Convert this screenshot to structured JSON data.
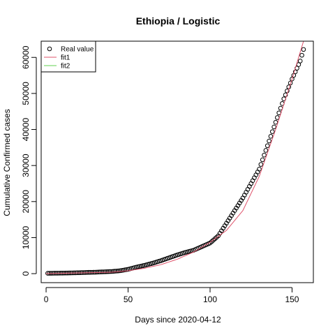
{
  "chart_data": {
    "type": "scatter",
    "title": "Ethiopia / Logistic",
    "xlabel": "Days since 2020-04-12",
    "ylabel": "Cumulative Confirmed cases",
    "xlim": [
      -3,
      163
    ],
    "ylim": [
      -2500,
      64500
    ],
    "x_ticks": [
      {
        "value": 0,
        "label": "0"
      },
      {
        "value": 50,
        "label": "50"
      },
      {
        "value": 100,
        "label": "100"
      },
      {
        "value": 150,
        "label": "150"
      }
    ],
    "y_ticks": [
      {
        "value": 0,
        "label": "0"
      },
      {
        "value": 10000,
        "label": "10000"
      },
      {
        "value": 20000,
        "label": "20000"
      },
      {
        "value": 30000,
        "label": "30000"
      },
      {
        "value": 40000,
        "label": "40000"
      },
      {
        "value": 50000,
        "label": "50000"
      },
      {
        "value": 60000,
        "label": "60000"
      }
    ],
    "legend": {
      "position": "top-left",
      "entries": [
        {
          "label": "Real value",
          "kind": "point",
          "color": "#000000"
        },
        {
          "label": "fit1",
          "kind": "line",
          "color": "#DF536B"
        },
        {
          "label": "fit2",
          "kind": "line",
          "color": "#61D04F"
        }
      ]
    },
    "real_value": {
      "x": [
        1,
        5,
        10,
        15,
        20,
        25,
        30,
        35,
        40,
        45,
        50,
        55,
        60,
        65,
        70,
        75,
        80,
        85,
        90,
        95,
        100,
        105,
        110,
        115,
        120,
        125,
        130,
        135,
        140,
        145,
        150,
        155,
        157
      ],
      "y": [
        100,
        120,
        150,
        200,
        250,
        350,
        400,
        500,
        600,
        800,
        1200,
        1800,
        2300,
        2900,
        3600,
        4400,
        5200,
        5900,
        6500,
        7500,
        8500,
        10500,
        14000,
        17500,
        21000,
        25000,
        29000,
        35500,
        42000,
        48500,
        54000,
        59000,
        62200
      ]
    },
    "fit1": {
      "color": "#DF536B",
      "x": [
        0,
        10,
        20,
        30,
        40,
        50,
        60,
        70,
        80,
        90,
        100,
        110,
        120,
        130,
        140,
        150,
        157
      ],
      "y": [
        0,
        100,
        200,
        300,
        400,
        800,
        1500,
        2500,
        4000,
        6000,
        8700,
        12000,
        17500,
        27000,
        40000,
        54000,
        64500
      ]
    }
  }
}
